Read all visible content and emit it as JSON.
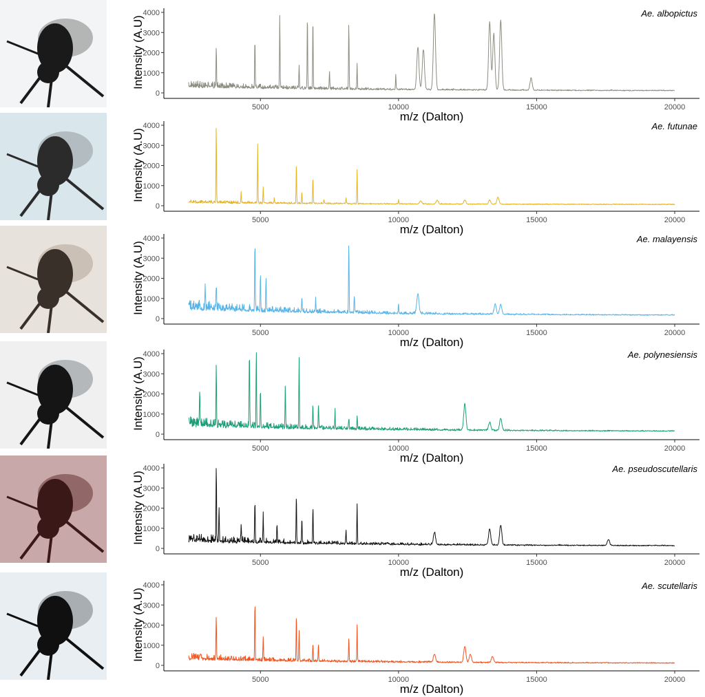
{
  "chart_data": [
    {
      "type": "line",
      "species": "Ae. albopictus",
      "color": "#8c8c80",
      "xlabel": "m/z (Dalton)",
      "ylabel": "Intensity (A.U)",
      "xlim": [
        2000,
        20000
      ],
      "ylim": [
        0,
        4000
      ],
      "xticks": [
        5000,
        10000,
        15000,
        20000
      ],
      "yticks": [
        0,
        1000,
        2000,
        3000,
        4000
      ],
      "baseline": 250,
      "noise": 350,
      "peaks": [
        [
          3400,
          1900
        ],
        [
          4800,
          2500
        ],
        [
          5700,
          3800
        ],
        [
          6400,
          1200
        ],
        [
          6700,
          3700
        ],
        [
          6900,
          3600
        ],
        [
          7500,
          900
        ],
        [
          8200,
          3400
        ],
        [
          8500,
          1300
        ],
        [
          9900,
          800
        ],
        [
          10700,
          2100
        ],
        [
          10900,
          2000
        ],
        [
          11300,
          3800
        ],
        [
          13300,
          3400
        ],
        [
          13450,
          2800
        ],
        [
          13700,
          3500
        ],
        [
          14800,
          600
        ]
      ]
    },
    {
      "type": "line",
      "species": "Ae. futunae",
      "color": "#e6b422",
      "xlabel": "m/z (Dalton)",
      "ylabel": "Intensity (A.U)",
      "xlim": [
        2000,
        20000
      ],
      "ylim": [
        0,
        4000
      ],
      "xticks": [
        5000,
        10000,
        15000,
        20000
      ],
      "yticks": [
        0,
        1000,
        2000,
        3000,
        4000
      ],
      "baseline": 120,
      "noise": 150,
      "peaks": [
        [
          3400,
          3800
        ],
        [
          4300,
          500
        ],
        [
          4900,
          2900
        ],
        [
          5100,
          800
        ],
        [
          5500,
          300
        ],
        [
          6300,
          2000
        ],
        [
          6500,
          600
        ],
        [
          6900,
          1400
        ],
        [
          7300,
          200
        ],
        [
          8100,
          300
        ],
        [
          8500,
          1700
        ],
        [
          10000,
          200
        ],
        [
          10800,
          150
        ],
        [
          11400,
          200
        ],
        [
          12400,
          200
        ],
        [
          13300,
          200
        ],
        [
          13600,
          350
        ]
      ]
    },
    {
      "type": "line",
      "species": "Ae. malayensis",
      "color": "#56b4e9",
      "xlabel": "m/z (Dalton)",
      "ylabel": "Intensity (A.U)",
      "xlim": [
        2000,
        20000
      ],
      "ylim": [
        0,
        4000
      ],
      "xticks": [
        5000,
        10000,
        15000,
        20000
      ],
      "yticks": [
        0,
        1000,
        2000,
        3000,
        4000
      ],
      "baseline": 400,
      "noise": 550,
      "peaks": [
        [
          3000,
          1000
        ],
        [
          3400,
          1100
        ],
        [
          4800,
          3500
        ],
        [
          5000,
          1900
        ],
        [
          5200,
          1500
        ],
        [
          6500,
          800
        ],
        [
          7000,
          600
        ],
        [
          8200,
          3600
        ],
        [
          8400,
          900
        ],
        [
          10000,
          500
        ],
        [
          10700,
          1000
        ],
        [
          13500,
          500
        ],
        [
          13700,
          500
        ]
      ]
    },
    {
      "type": "line",
      "species": "Ae. polynesiensis",
      "color": "#1a9e77",
      "xlabel": "m/z (Dalton)",
      "ylabel": "Intensity (A.U)",
      "xlim": [
        2000,
        20000
      ],
      "ylim": [
        0,
        4000
      ],
      "xticks": [
        5000,
        10000,
        15000,
        20000
      ],
      "yticks": [
        0,
        1000,
        2000,
        3000,
        4000
      ],
      "baseline": 350,
      "noise": 500,
      "peaks": [
        [
          2800,
          1700
        ],
        [
          3400,
          3100
        ],
        [
          4600,
          3900
        ],
        [
          4850,
          3950
        ],
        [
          5000,
          1900
        ],
        [
          5900,
          2200
        ],
        [
          6400,
          3500
        ],
        [
          6900,
          1200
        ],
        [
          7100,
          1200
        ],
        [
          7700,
          900
        ],
        [
          8200,
          500
        ],
        [
          8500,
          700
        ],
        [
          12400,
          1300
        ],
        [
          13300,
          400
        ],
        [
          13700,
          600
        ]
      ]
    },
    {
      "type": "line",
      "species": "Ae. pseudoscutellaris",
      "color": "#111111",
      "xlabel": "m/z (Dalton)",
      "ylabel": "Intensity (A.U)",
      "xlim": [
        2000,
        20000
      ],
      "ylim": [
        0,
        4000
      ],
      "xticks": [
        5000,
        10000,
        15000,
        20000
      ],
      "yticks": [
        0,
        1000,
        2000,
        3000,
        4000
      ],
      "baseline": 300,
      "noise": 450,
      "peaks": [
        [
          3400,
          3800
        ],
        [
          3500,
          1800
        ],
        [
          4300,
          900
        ],
        [
          4800,
          2100
        ],
        [
          5100,
          1500
        ],
        [
          5600,
          900
        ],
        [
          6300,
          2500
        ],
        [
          6500,
          1300
        ],
        [
          6900,
          1800
        ],
        [
          8100,
          700
        ],
        [
          8500,
          2000
        ],
        [
          11300,
          600
        ],
        [
          13300,
          800
        ],
        [
          13700,
          1000
        ],
        [
          17600,
          300
        ]
      ]
    },
    {
      "type": "line",
      "species": "Ae. scutellaris",
      "color": "#f0541e",
      "xlabel": "m/z (Dalton)",
      "ylabel": "Intensity (A.U)",
      "xlim": [
        2000,
        20000
      ],
      "ylim": [
        0,
        4000
      ],
      "xticks": [
        5000,
        10000,
        15000,
        20000
      ],
      "yticks": [
        0,
        1000,
        2000,
        3000,
        4000
      ],
      "baseline": 250,
      "noise": 350,
      "peaks": [
        [
          3400,
          2200
        ],
        [
          4800,
          3000
        ],
        [
          5100,
          1200
        ],
        [
          6300,
          2300
        ],
        [
          6400,
          1500
        ],
        [
          6900,
          900
        ],
        [
          7100,
          800
        ],
        [
          8200,
          1200
        ],
        [
          8500,
          1800
        ],
        [
          11300,
          400
        ],
        [
          12400,
          800
        ],
        [
          12600,
          400
        ],
        [
          13400,
          300
        ]
      ]
    }
  ],
  "photos": [
    {
      "palette": [
        "#f2f4f6",
        "#1a1a1a",
        "#8a8a8a"
      ]
    },
    {
      "palette": [
        "#d9e6ec",
        "#2b2b2b",
        "#9aa0a4"
      ]
    },
    {
      "palette": [
        "#e8e2dc",
        "#3a302a",
        "#b8aa9c"
      ]
    },
    {
      "palette": [
        "#f0f0f0",
        "#151515",
        "#8d9298"
      ]
    },
    {
      "palette": [
        "#c8a8a8",
        "#3a1818",
        "#6e3c3c"
      ]
    },
    {
      "palette": [
        "#e9eef2",
        "#101010",
        "#7f8488"
      ]
    }
  ]
}
